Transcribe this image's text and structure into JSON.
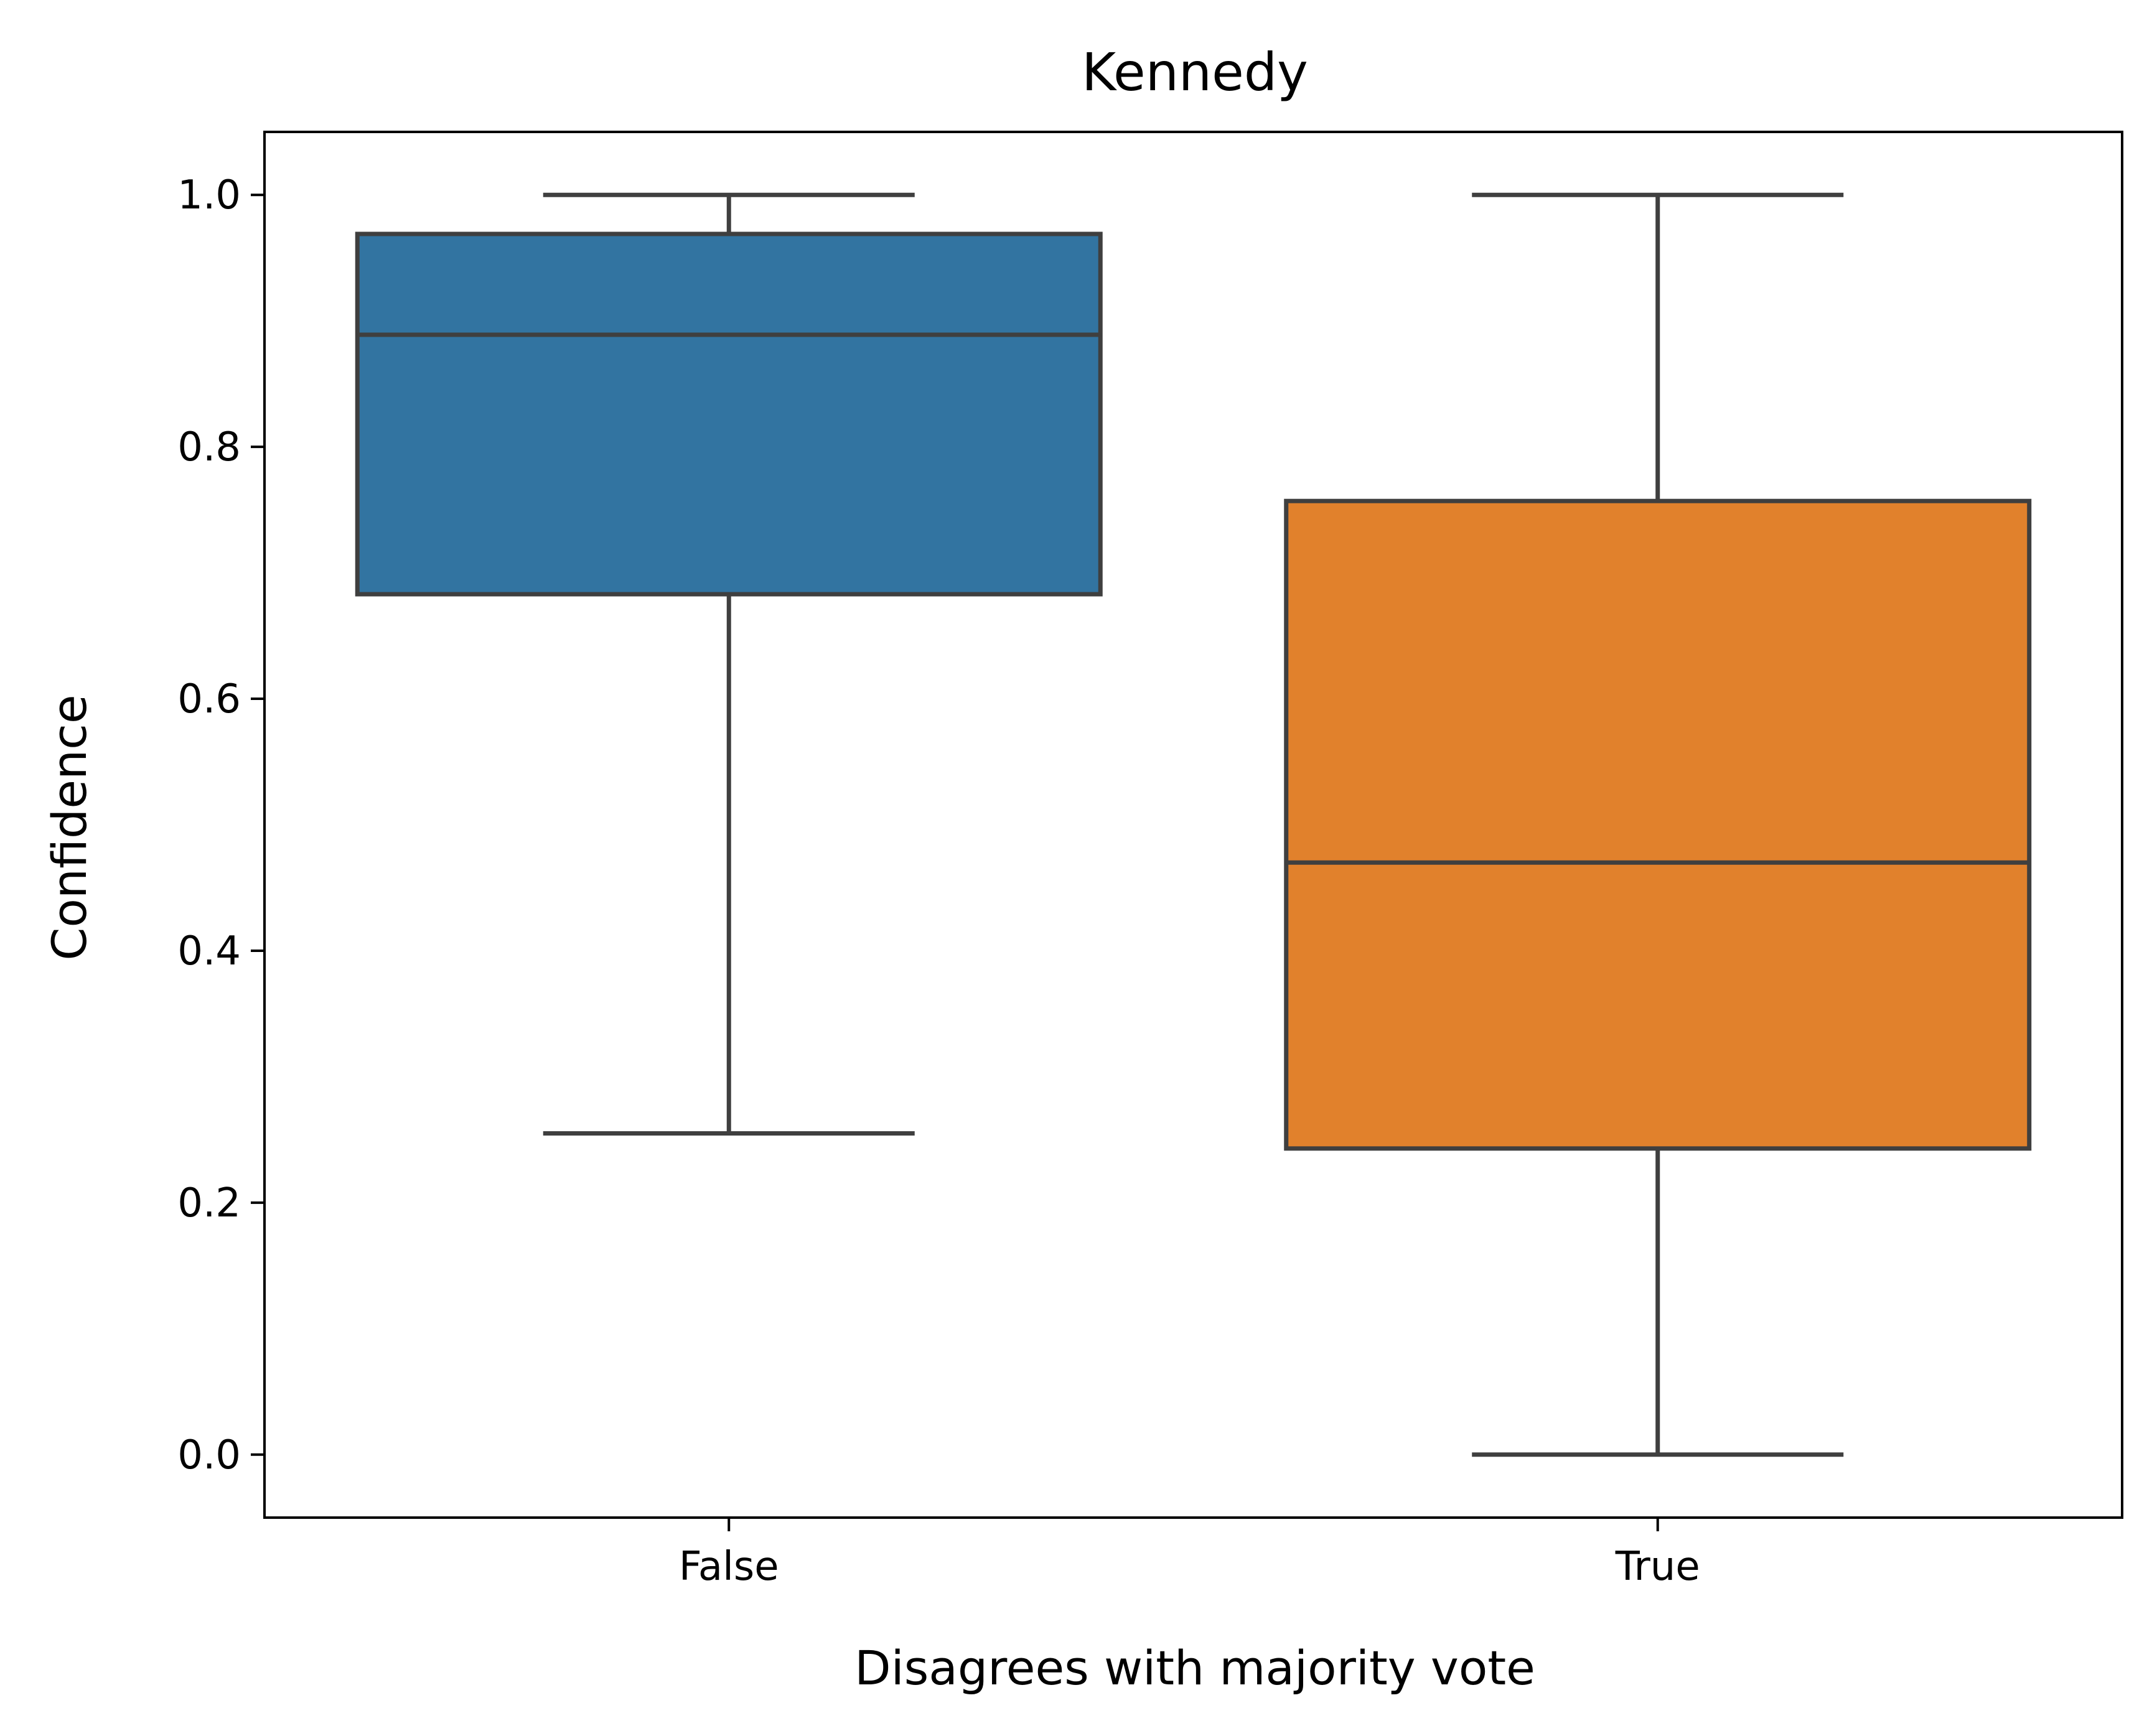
{
  "chart_data": {
    "type": "box",
    "title": "Kennedy",
    "xlabel": "Disagrees with majority vote",
    "ylabel": "Confidence",
    "categories": [
      "False",
      "True"
    ],
    "ylim": [
      -0.05,
      1.05
    ],
    "yticks": [
      0.0,
      0.2,
      0.4,
      0.6,
      0.8,
      1.0
    ],
    "ytick_labels": [
      "0.0",
      "0.2",
      "0.4",
      "0.6",
      "0.8",
      "1.0"
    ],
    "grid": false,
    "boxes": [
      {
        "category": "False",
        "whisker_low": 0.255,
        "q1": 0.683,
        "median": 0.889,
        "q3": 0.969,
        "whisker_high": 1.0,
        "color": "#3274a1"
      },
      {
        "category": "True",
        "whisker_low": 0.0,
        "q1": 0.243,
        "median": 0.47,
        "q3": 0.757,
        "whisker_high": 1.0,
        "color": "#e1812c"
      }
    ],
    "line_color": "#3f3f3f"
  }
}
